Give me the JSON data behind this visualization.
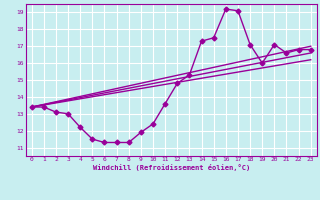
{
  "xlabel": "Windchill (Refroidissement éolien,°C)",
  "bg_color": "#c8eef0",
  "grid_color": "#ffffff",
  "line_color": "#990099",
  "marker": "D",
  "markersize": 2.5,
  "linewidth": 1.0,
  "xlim": [
    -0.5,
    23.5
  ],
  "ylim": [
    10.5,
    19.5
  ],
  "xticks": [
    0,
    1,
    2,
    3,
    4,
    5,
    6,
    7,
    8,
    9,
    10,
    11,
    12,
    13,
    14,
    15,
    16,
    17,
    18,
    19,
    20,
    21,
    22,
    23
  ],
  "yticks": [
    11,
    12,
    13,
    14,
    15,
    16,
    17,
    18,
    19
  ],
  "series1_x": [
    0,
    1,
    2,
    3,
    4,
    5,
    6,
    7,
    8,
    9,
    10,
    11,
    12,
    13,
    14,
    15,
    16,
    17,
    18,
    19,
    20,
    21,
    22,
    23
  ],
  "series1_y": [
    13.4,
    13.4,
    13.1,
    13.0,
    12.2,
    11.5,
    11.3,
    11.3,
    11.3,
    11.9,
    12.4,
    13.6,
    14.8,
    15.3,
    17.3,
    17.5,
    19.2,
    19.1,
    17.1,
    16.0,
    17.1,
    16.6,
    16.8,
    16.8
  ],
  "line2_x": [
    0,
    23
  ],
  "line2_y": [
    13.4,
    17.0
  ],
  "line3_x": [
    0,
    23
  ],
  "line3_y": [
    13.4,
    16.6
  ],
  "line4_x": [
    0,
    23
  ],
  "line4_y": [
    13.4,
    16.2
  ]
}
